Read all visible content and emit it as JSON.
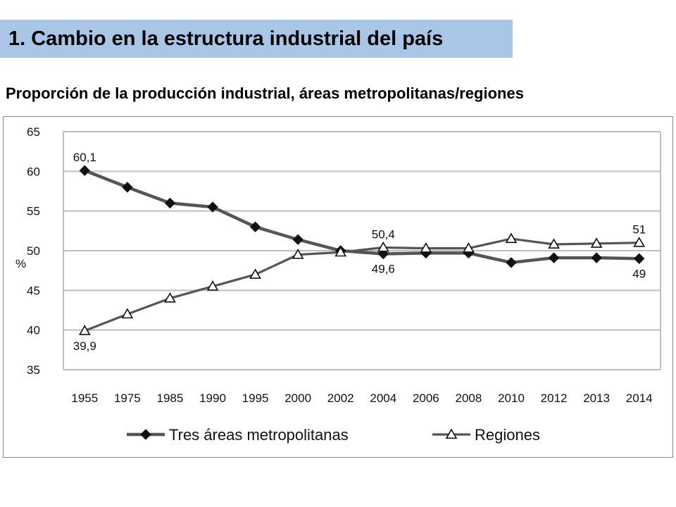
{
  "header": {
    "title": "1. Cambio en la estructura industrial del país",
    "subtitle": "Proporción de la producción industrial, áreas metropolitanas/regiones"
  },
  "colors": {
    "banner": "#a9c6e6",
    "series_line": "#555555",
    "grid": "#bfbfbf"
  },
  "chart_data": {
    "type": "line",
    "categories": [
      "1955",
      "1975",
      "1985",
      "1990",
      "1995",
      "2000",
      "2002",
      "2004",
      "2006",
      "2008",
      "2010",
      "2012",
      "2013",
      "2014"
    ],
    "ylabel": "%",
    "ylim": [
      35,
      65
    ],
    "yticks": [
      35,
      40,
      45,
      50,
      55,
      60,
      65
    ],
    "grid": true,
    "legend_position": "bottom",
    "series": [
      {
        "name": "Tres áreas metropolitanas",
        "marker": "diamond",
        "values": [
          60.1,
          58.0,
          56.0,
          55.5,
          53.0,
          51.4,
          50.0,
          49.6,
          49.7,
          49.7,
          48.5,
          49.1,
          49.1,
          49.0
        ]
      },
      {
        "name": "Regiones",
        "marker": "triangle",
        "values": [
          39.9,
          42.0,
          44.0,
          45.5,
          47.0,
          49.5,
          49.8,
          50.4,
          50.3,
          50.3,
          51.5,
          50.8,
          50.9,
          51.0
        ]
      }
    ],
    "annotations": [
      {
        "text": "60,1",
        "series": 0,
        "index": 0,
        "pos": "above"
      },
      {
        "text": "39,9",
        "series": 1,
        "index": 0,
        "pos": "below"
      },
      {
        "text": "50,4",
        "series": 1,
        "index": 7,
        "pos": "above"
      },
      {
        "text": "49,6",
        "series": 0,
        "index": 7,
        "pos": "below"
      },
      {
        "text": "51",
        "series": 1,
        "index": 13,
        "pos": "above"
      },
      {
        "text": "49",
        "series": 0,
        "index": 13,
        "pos": "below"
      }
    ]
  }
}
